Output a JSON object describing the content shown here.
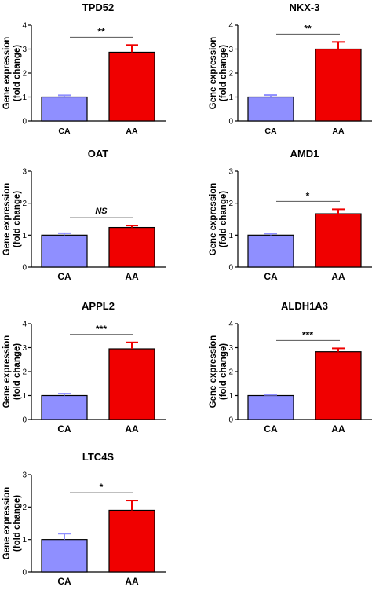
{
  "colors": {
    "CA": "#8f8fff",
    "AA": "#f00000",
    "axis": "#000000",
    "sig_line": "#555555"
  },
  "chart_data": [
    {
      "type": "bar",
      "title": "TPD52",
      "ylabel_line1": "Gene expression",
      "ylabel_line2": "(fold change)",
      "categories": [
        "CA",
        "AA"
      ],
      "values": [
        1.0,
        2.87
      ],
      "errors": [
        0.07,
        0.3
      ],
      "ylim": [
        0,
        4
      ],
      "yticks": [
        "0",
        "1",
        "2",
        "3",
        "4"
      ],
      "significance": "**"
    },
    {
      "type": "bar",
      "title": "NKX-3",
      "ylabel_line1": "Gene expression",
      "ylabel_line2": "(fold change)",
      "categories": [
        "CA",
        "AA"
      ],
      "values": [
        1.0,
        3.0
      ],
      "errors": [
        0.08,
        0.3
      ],
      "ylim": [
        0,
        4
      ],
      "yticks": [
        "0",
        "1",
        "2",
        "3",
        "4"
      ],
      "significance": "**"
    },
    {
      "type": "bar",
      "title": "OAT",
      "ylabel_line1": "Gene expression",
      "ylabel_line2": "(fold change)",
      "categories": [
        "CA",
        "AA"
      ],
      "values": [
        1.0,
        1.24
      ],
      "errors": [
        0.06,
        0.06
      ],
      "ylim": [
        0,
        3
      ],
      "yticks": [
        "0",
        "1",
        "2",
        "3"
      ],
      "significance": "NS"
    },
    {
      "type": "bar",
      "title": "AMD1",
      "ylabel_line1": "Gene expression",
      "ylabel_line2": "(fold change)",
      "categories": [
        "CA",
        "AA"
      ],
      "values": [
        1.0,
        1.67
      ],
      "errors": [
        0.05,
        0.14
      ],
      "ylim": [
        0,
        3
      ],
      "yticks": [
        "0",
        "1",
        "2",
        "3"
      ],
      "significance": "*"
    },
    {
      "type": "bar",
      "title": "APPL2",
      "ylabel_line1": "Gene expression",
      "ylabel_line2": "(fold change)",
      "categories": [
        "CA",
        "AA"
      ],
      "values": [
        1.0,
        2.95
      ],
      "errors": [
        0.08,
        0.27
      ],
      "ylim": [
        0,
        4
      ],
      "yticks": [
        "0",
        "1",
        "2",
        "3",
        "4"
      ],
      "significance": "***"
    },
    {
      "type": "bar",
      "title": "ALDH1A3",
      "ylabel_line1": "Gene expression",
      "ylabel_line2": "(fold change)",
      "categories": [
        "CA",
        "AA"
      ],
      "values": [
        1.0,
        2.83
      ],
      "errors": [
        0.03,
        0.14
      ],
      "ylim": [
        0,
        4
      ],
      "yticks": [
        "0",
        "1",
        "2",
        "3",
        "4"
      ],
      "significance": "***"
    },
    {
      "type": "bar",
      "title": "LTC4S",
      "ylabel_line1": "Gene expression",
      "ylabel_line2": "(fold change)",
      "categories": [
        "CA",
        "AA"
      ],
      "values": [
        1.0,
        1.9
      ],
      "errors": [
        0.18,
        0.3
      ],
      "ylim": [
        0,
        3
      ],
      "yticks": [
        "0",
        "1",
        "2",
        "3"
      ],
      "significance": "*"
    }
  ]
}
